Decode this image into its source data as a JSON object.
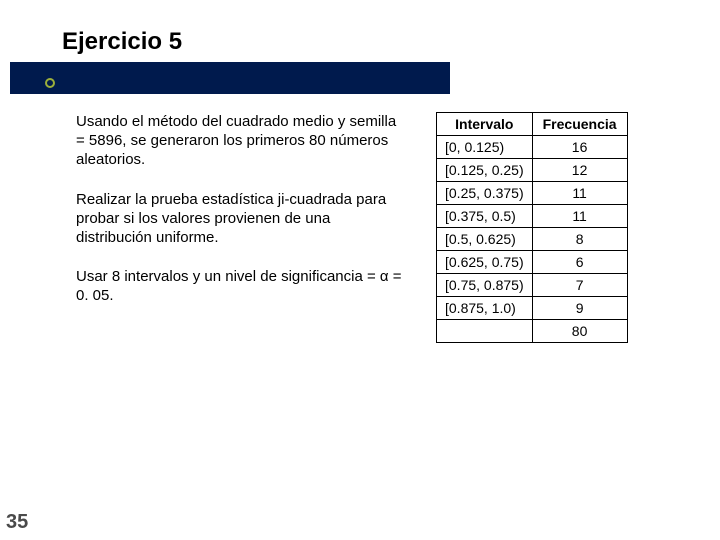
{
  "title": "Ejercicio 5",
  "divider_color": "#001a4d",
  "bullet_ring_color": "#9CAF3B",
  "paragraphs": {
    "p1": "Usando el método del cuadrado medio y semilla = 5896, se generaron los primeros 80 números aleatorios.",
    "p2": "Realizar la prueba estadística ji-cuadrada para probar si los valores provienen de una distribución uniforme.",
    "p3": "Usar 8 intervalos y un nivel de significancia = α = 0. 05."
  },
  "table": {
    "columns": [
      "Intervalo",
      "Frecuencia"
    ],
    "rows": [
      [
        "[0, 0.125)",
        "16"
      ],
      [
        "[0.125, 0.25)",
        "12"
      ],
      [
        "[0.25, 0.375)",
        "11"
      ],
      [
        "[0.375, 0.5)",
        "11"
      ],
      [
        "[0.5, 0.625)",
        "8"
      ],
      [
        "[0.625, 0.75)",
        "6"
      ],
      [
        "[0.75, 0.875)",
        "7"
      ],
      [
        "[0.875, 1.0)",
        "9"
      ]
    ],
    "total": [
      "",
      "80"
    ]
  },
  "page_number": "35"
}
